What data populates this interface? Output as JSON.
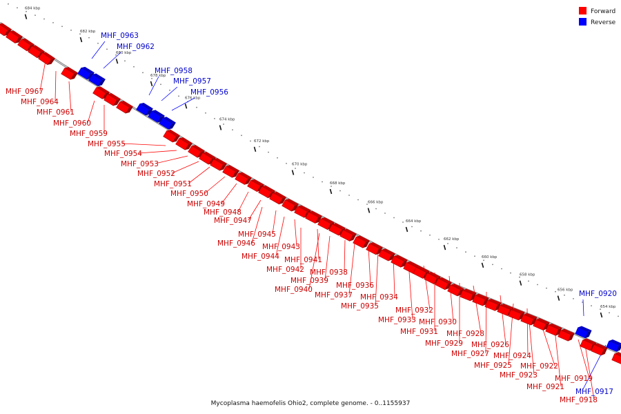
{
  "caption": "Mycoplasma haemofelis Ohio2, complete genome. - 0..1155937",
  "legend": [
    {
      "label": "Forward",
      "color": "#ff0000"
    },
    {
      "label": "Reverse",
      "color": "#0000ff"
    }
  ],
  "colors": {
    "forward": "#ff0000",
    "reverse": "#0000ff",
    "forward_text": "#cc0000",
    "reverse_text": "#0000cc",
    "backbone": "#888888"
  },
  "ticks": [
    "684 kbp",
    "682 kbp",
    "680 kbp",
    "678 kbp",
    "676 kbp",
    "674 kbp",
    "672 kbp",
    "670 kbp",
    "668 kbp",
    "666 kbp",
    "664 kbp",
    "662 kbp",
    "660 kbp",
    "658 kbp",
    "656 kbp",
    "654 kbp"
  ],
  "forward_genes": [
    "MHF_0967",
    "MHF_0964",
    "MHF_0961",
    "MHF_0960",
    "MHF_0959",
    "MHF_0955",
    "MHF_0954",
    "MHF_0953",
    "MHF_0952",
    "MHF_0951",
    "MHF_0950",
    "MHF_0949",
    "MHF_0948",
    "MHF_0947",
    "MHF_0945",
    "MHF_0946",
    "MHF_0943",
    "MHF_0944",
    "MHF_0941",
    "MHF_0942",
    "MHF_0938",
    "MHF_0939",
    "MHF_0940",
    "MHF_0936",
    "MHF_0937",
    "MHF_0934",
    "MHF_0935",
    "MHF_0932",
    "MHF_0933",
    "MHF_0930",
    "MHF_0931",
    "MHF_0928",
    "MHF_0929",
    "MHF_0926",
    "MHF_0927",
    "MHF_0924",
    "MHF_0925",
    "MHF_0922",
    "MHF_0923",
    "MHF_0921",
    "MHF_0919",
    "MHF_0918"
  ],
  "reverse_genes": [
    "MHF_0963",
    "MHF_0962",
    "MHF_0958",
    "MHF_0957",
    "MHF_0956",
    "MHF_0920",
    "MHF_0917"
  ]
}
